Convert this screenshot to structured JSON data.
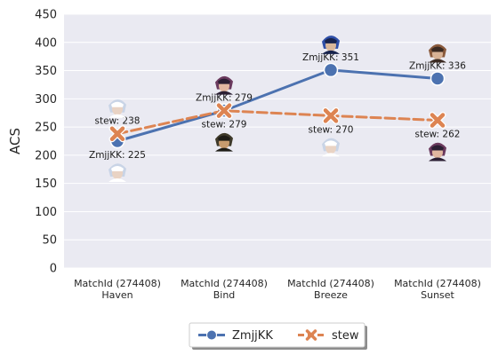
{
  "chart_data": {
    "type": "line",
    "title": "",
    "xlabel": "",
    "ylabel": "ACS",
    "ylim": [
      0,
      450
    ],
    "yticks": [
      0,
      50,
      100,
      150,
      200,
      250,
      300,
      350,
      400,
      450
    ],
    "grid": true,
    "legend_position": "bottom-center",
    "categories": [
      [
        "MatchId (274408)",
        "Haven"
      ],
      [
        "MatchId (274408)",
        "Bind"
      ],
      [
        "MatchId (274408)",
        "Breeze"
      ],
      [
        "MatchId (274408)",
        "Sunset"
      ]
    ],
    "series": [
      {
        "name": "ZmjjKK",
        "color": "#4c72b0",
        "dash": "solid",
        "marker": "circle",
        "values": [
          225,
          279,
          351,
          336
        ],
        "labels": [
          "ZmjjKK: 225",
          "ZmjjKK: 279",
          "ZmjjKK: 351",
          "ZmjjKK: 336"
        ],
        "label_side": [
          "below",
          "above",
          "above",
          "above"
        ],
        "agent_icons": [
          "jett-icon",
          "clove-icon",
          "neon-icon",
          "chamber-icon"
        ]
      },
      {
        "name": "stew",
        "color": "#dd8452",
        "dash": "dashed",
        "marker": "x",
        "values": [
          238,
          279,
          270,
          262
        ],
        "labels": [
          "stew: 238",
          "stew: 279",
          "stew: 270",
          "stew: 262"
        ],
        "label_side": [
          "above",
          "below",
          "below",
          "below"
        ],
        "agent_icons": [
          "jett-icon",
          "sage-icon",
          "jett-icon",
          "clove-icon"
        ]
      }
    ]
  }
}
